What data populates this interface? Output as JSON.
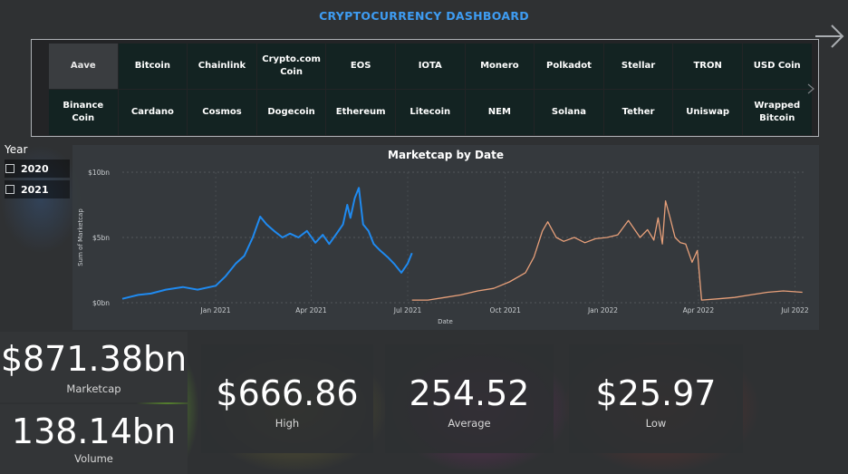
{
  "dashboard": {
    "title": "CRYPTOCURRENCY DASHBOARD"
  },
  "coins": {
    "row1": [
      "Aave",
      "Bitcoin",
      "Chainlink",
      "Crypto.com Coin",
      "EOS",
      "IOTA",
      "Monero",
      "Polkadot",
      "Stellar",
      "TRON",
      "USD Coin"
    ],
    "row2": [
      "Binance Coin",
      "Cardano",
      "Cosmos",
      "Dogecoin",
      "Ethereum",
      "Litecoin",
      "NEM",
      "Solana",
      "Tether",
      "Uniswap",
      "Wrapped Bitcoin"
    ],
    "selected": "Aave"
  },
  "year_slicer": {
    "title": "Year",
    "options": [
      "2020",
      "2021"
    ]
  },
  "chart_data": {
    "type": "line",
    "title": "Marketcap by Date",
    "xlabel": "Date",
    "ylabel": "Sum of Marketcap",
    "yticks": [
      "$0bn",
      "$5bn",
      "$10bn"
    ],
    "ylim": [
      0,
      10
    ],
    "xticks": [
      "Jan 2021",
      "Apr 2021",
      "Jul 2021",
      "Oct 2021",
      "Jan 2022",
      "Apr 2022",
      "Jul 2022"
    ],
    "xlim": [
      "2020-10-05",
      "2022-07-10"
    ],
    "grid": true,
    "series": [
      {
        "color": "#1f8af0",
        "points": [
          [
            "2020-10-05",
            0.3
          ],
          [
            "2020-10-20",
            0.6
          ],
          [
            "2020-11-01",
            0.7
          ],
          [
            "2020-11-15",
            1.0
          ],
          [
            "2020-12-01",
            1.2
          ],
          [
            "2020-12-15",
            1.0
          ],
          [
            "2021-01-01",
            1.3
          ],
          [
            "2021-01-10",
            2.0
          ],
          [
            "2021-01-20",
            3.0
          ],
          [
            "2021-01-28",
            3.6
          ],
          [
            "2021-02-05",
            5.0
          ],
          [
            "2021-02-12",
            6.6
          ],
          [
            "2021-02-18",
            6.0
          ],
          [
            "2021-02-25",
            5.5
          ],
          [
            "2021-03-05",
            5.0
          ],
          [
            "2021-03-12",
            5.3
          ],
          [
            "2021-03-20",
            5.0
          ],
          [
            "2021-03-28",
            5.5
          ],
          [
            "2021-04-05",
            4.6
          ],
          [
            "2021-04-12",
            5.2
          ],
          [
            "2021-04-18",
            4.5
          ],
          [
            "2021-04-25",
            5.3
          ],
          [
            "2021-05-01",
            6.0
          ],
          [
            "2021-05-05",
            7.5
          ],
          [
            "2021-05-08",
            6.5
          ],
          [
            "2021-05-12",
            8.0
          ],
          [
            "2021-05-16",
            8.8
          ],
          [
            "2021-05-20",
            6.0
          ],
          [
            "2021-05-25",
            5.5
          ],
          [
            "2021-05-30",
            4.5
          ],
          [
            "2021-06-05",
            4.0
          ],
          [
            "2021-06-12",
            3.5
          ],
          [
            "2021-06-18",
            3.0
          ],
          [
            "2021-06-25",
            2.3
          ],
          [
            "2021-07-01",
            3.0
          ],
          [
            "2021-07-05",
            3.8
          ]
        ]
      },
      {
        "color": "#e8a07a",
        "points": [
          [
            "2021-07-05",
            0.2
          ],
          [
            "2021-07-20",
            0.2
          ],
          [
            "2021-08-05",
            0.4
          ],
          [
            "2021-08-20",
            0.6
          ],
          [
            "2021-09-05",
            0.9
          ],
          [
            "2021-09-20",
            1.1
          ],
          [
            "2021-10-05",
            1.6
          ],
          [
            "2021-10-20",
            2.3
          ],
          [
            "2021-10-28",
            3.5
          ],
          [
            "2021-11-05",
            5.5
          ],
          [
            "2021-11-10",
            6.2
          ],
          [
            "2021-11-18",
            5.0
          ],
          [
            "2021-11-25",
            4.7
          ],
          [
            "2021-12-05",
            5.0
          ],
          [
            "2021-12-15",
            4.6
          ],
          [
            "2021-12-25",
            4.9
          ],
          [
            "2022-01-05",
            5.0
          ],
          [
            "2022-01-15",
            5.2
          ],
          [
            "2022-01-25",
            6.3
          ],
          [
            "2022-02-05",
            5.0
          ],
          [
            "2022-02-12",
            5.6
          ],
          [
            "2022-02-18",
            4.8
          ],
          [
            "2022-02-22",
            6.5
          ],
          [
            "2022-02-26",
            4.5
          ],
          [
            "2022-03-01",
            7.8
          ],
          [
            "2022-03-05",
            6.6
          ],
          [
            "2022-03-10",
            5.0
          ],
          [
            "2022-03-15",
            4.6
          ],
          [
            "2022-03-20",
            4.5
          ],
          [
            "2022-03-26",
            3.1
          ],
          [
            "2022-03-31",
            4.0
          ],
          [
            "2022-04-04",
            0.2
          ],
          [
            "2022-04-20",
            0.3
          ],
          [
            "2022-05-05",
            0.4
          ],
          [
            "2022-05-20",
            0.6
          ],
          [
            "2022-06-05",
            0.8
          ],
          [
            "2022-06-20",
            0.9
          ],
          [
            "2022-07-08",
            0.8
          ]
        ]
      }
    ]
  },
  "kpi": {
    "marketcap": {
      "value": "$871.38bn",
      "label": "Marketcap"
    },
    "volume": {
      "value": "138.14bn",
      "label": "Volume"
    },
    "high": {
      "value": "$666.86",
      "label": "High"
    },
    "average": {
      "value": "254.52",
      "label": "Average"
    },
    "low": {
      "value": "$25.97",
      "label": "Low"
    }
  }
}
